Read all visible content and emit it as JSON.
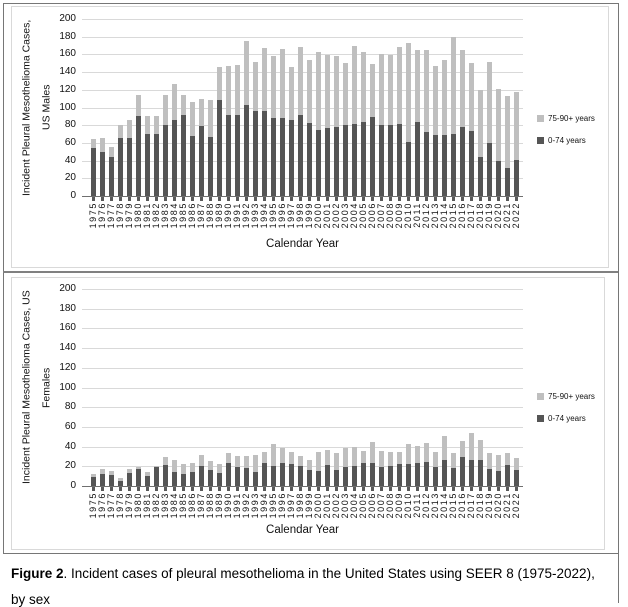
{
  "figure": {
    "caption_bold": "Figure 2",
    "caption_rest": ". Incident cases of pleural mesothelioma in the United States using SEER 8 (1975-2022), by sex"
  },
  "colors": {
    "dark_series": "#555555",
    "light_series": "#bfbfbf",
    "gridline": "#d9d9d9",
    "axis_line": "#6f6f6f",
    "tick_mark": "#595959"
  },
  "chart_data": [
    {
      "type": "bar",
      "stacked": true,
      "title": "",
      "ylabel": "Incident Pleural Mesothelioma Cases, US Males",
      "ylabel_lines": [
        "Incident Pleural Mesothelioma Cases,",
        "US Males"
      ],
      "xlabel": "Calendar Year",
      "ylim": [
        0,
        200
      ],
      "ytick_interval": 20,
      "grid": true,
      "legend_position": "right",
      "legend": [
        {
          "label": "75-90+ years",
          "color": "#bfbfbf"
        },
        {
          "label": "0-74 years",
          "color": "#555555"
        }
      ],
      "categories": [
        "1975",
        "1976",
        "1977",
        "1978",
        "1979",
        "1980",
        "1981",
        "1982",
        "1983",
        "1984",
        "1985",
        "1986",
        "1987",
        "1988",
        "1989",
        "1990",
        "1991",
        "1992",
        "1993",
        "1994",
        "1995",
        "1996",
        "1997",
        "1998",
        "1999",
        "2000",
        "2001",
        "2002",
        "2003",
        "2004",
        "2005",
        "2006",
        "2007",
        "2008",
        "2009",
        "2010",
        "2011",
        "2012",
        "2013",
        "2014",
        "2015",
        "2016",
        "2017",
        "2018",
        "2019",
        "2020",
        "2021",
        "2022"
      ],
      "series": [
        {
          "name": "0-74 years",
          "color": "#555555",
          "values": [
            54,
            50,
            44,
            65,
            66,
            90,
            70,
            70,
            80,
            86,
            91,
            68,
            79,
            67,
            109,
            92,
            92,
            103,
            96,
            96,
            88,
            88,
            86,
            92,
            83,
            75,
            77,
            78,
            80,
            81,
            84,
            89,
            80,
            80,
            81,
            61,
            84,
            72,
            69,
            69,
            70,
            78,
            74,
            44,
            60,
            40,
            32,
            41
          ]
        },
        {
          "name": "75-90+ years",
          "color": "#bfbfbf",
          "values": [
            10,
            15,
            11,
            15,
            20,
            24,
            20,
            20,
            34,
            41,
            23,
            38,
            31,
            41,
            37,
            55,
            56,
            72,
            55,
            71,
            70,
            78,
            60,
            76,
            71,
            88,
            82,
            80,
            70,
            88,
            79,
            60,
            80,
            79,
            87,
            112,
            81,
            93,
            78,
            85,
            110,
            87,
            76,
            76,
            91,
            81,
            81,
            76
          ]
        }
      ]
    },
    {
      "type": "bar",
      "stacked": true,
      "title": "",
      "ylabel": "Incident Pleural Mesothelioma Cases, US Females",
      "ylabel_lines": [
        "Incident Pleural Mesothelioma Cases, US",
        "Females"
      ],
      "xlabel": "Calendar Year",
      "ylim": [
        0,
        200
      ],
      "ytick_interval": 20,
      "grid": true,
      "legend_position": "right",
      "legend": [
        {
          "label": "75-90+ years",
          "color": "#bfbfbf"
        },
        {
          "label": "0-74 years",
          "color": "#555555"
        }
      ],
      "categories": [
        "1975",
        "1976",
        "1977",
        "1978",
        "1979",
        "1980",
        "1981",
        "1982",
        "1983",
        "1984",
        "1985",
        "1986",
        "1987",
        "1988",
        "1989",
        "1990",
        "1991",
        "1992",
        "1993",
        "1994",
        "1995",
        "1996",
        "1997",
        "1998",
        "1999",
        "2000",
        "2001",
        "2002",
        "2003",
        "2004",
        "2005",
        "2006",
        "2007",
        "2008",
        "2009",
        "2010",
        "2011",
        "2012",
        "2013",
        "2014",
        "2015",
        "2016",
        "2017",
        "2018",
        "2019",
        "2020",
        "2021",
        "2022"
      ],
      "series": [
        {
          "name": "0-74 years",
          "color": "#555555",
          "values": [
            9,
            12,
            11,
            5,
            13,
            17,
            10,
            19,
            21,
            14,
            12,
            14,
            20,
            16,
            13,
            23,
            19,
            18,
            14,
            23,
            20,
            23,
            22,
            20,
            16,
            15,
            21,
            16,
            19,
            20,
            23,
            23,
            19,
            20,
            22,
            22,
            23,
            24,
            19,
            26,
            18,
            29,
            26,
            26,
            17,
            15,
            21,
            16
          ]
        },
        {
          "name": "75-90+ years",
          "color": "#bfbfbf",
          "values": [
            3,
            5,
            4,
            3,
            4,
            2,
            4,
            1,
            8,
            12,
            10,
            9,
            11,
            9,
            9,
            11,
            11,
            12,
            17,
            12,
            23,
            16,
            13,
            10,
            10,
            20,
            16,
            18,
            20,
            20,
            13,
            22,
            17,
            15,
            13,
            21,
            18,
            20,
            16,
            25,
            15,
            17,
            28,
            21,
            17,
            16,
            13,
            12
          ]
        }
      ]
    }
  ]
}
